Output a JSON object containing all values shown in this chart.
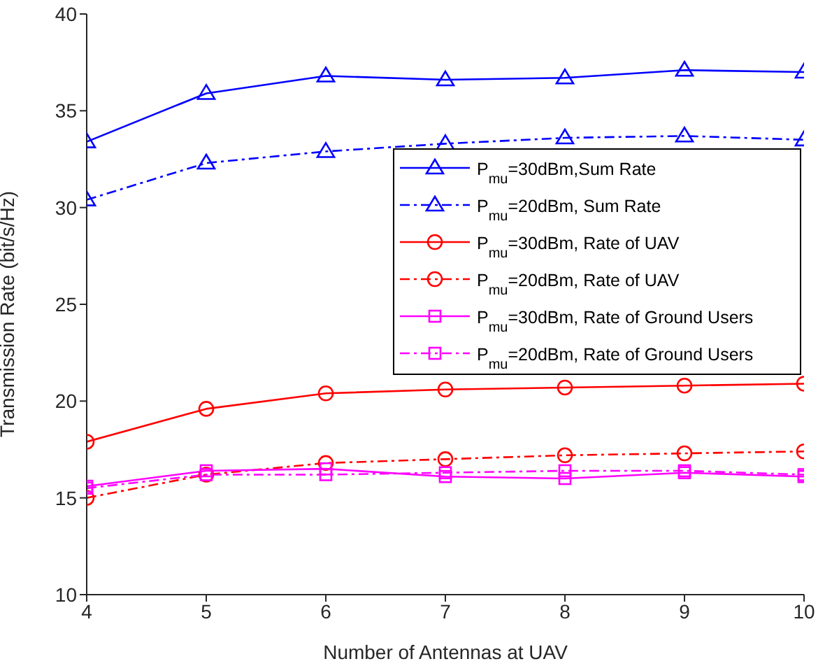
{
  "chart_data": {
    "type": "line",
    "xlabel": "Number of Antennas at UAV",
    "ylabel": "Transmission Rate (bit/s/Hz)",
    "x": [
      4,
      5,
      6,
      7,
      8,
      9,
      10
    ],
    "xlim": [
      4,
      10
    ],
    "xticks": [
      4,
      5,
      6,
      7,
      8,
      9,
      10
    ],
    "ylim": [
      10,
      40
    ],
    "yticks": [
      10,
      15,
      20,
      25,
      30,
      35,
      40
    ],
    "grid": false,
    "legend": "right",
    "series": [
      {
        "name": "P$_{mu}$=30dBm,Sum Rate",
        "color": "#0000ff",
        "marker": "triangle",
        "line_style": "solid",
        "values": [
          33.4,
          35.9,
          36.8,
          36.6,
          36.7,
          37.1,
          37.0
        ]
      },
      {
        "name": "P$_{mu}$=20dBm, Sum Rate",
        "color": "#0000ff",
        "marker": "triangle",
        "line_style": "dashdot",
        "values": [
          30.4,
          32.3,
          32.9,
          33.3,
          33.6,
          33.7,
          33.5
        ]
      },
      {
        "name": "P$_{mu}$=30dBm, Rate of UAV",
        "color": "#ff0000",
        "marker": "circle",
        "line_style": "solid",
        "values": [
          17.9,
          19.6,
          20.4,
          20.6,
          20.7,
          20.8,
          20.9
        ]
      },
      {
        "name": "P$_{mu}$=20dBm, Rate of UAV",
        "color": "#ff0000",
        "marker": "circle",
        "line_style": "dashdot",
        "values": [
          15.0,
          16.2,
          16.8,
          17.0,
          17.2,
          17.3,
          17.4
        ]
      },
      {
        "name": "P$_{mu}$=30dBm, Rate of Ground Users",
        "color": "#ff00ff",
        "marker": "square",
        "line_style": "solid",
        "values": [
          15.6,
          16.4,
          16.5,
          16.1,
          16.0,
          16.3,
          16.1
        ]
      },
      {
        "name": "P$_{mu}$=20dBm, Rate of Ground Users",
        "color": "#ff00ff",
        "marker": "square",
        "line_style": "dashdot",
        "values": [
          15.5,
          16.2,
          16.2,
          16.3,
          16.4,
          16.4,
          16.2
        ]
      }
    ]
  }
}
